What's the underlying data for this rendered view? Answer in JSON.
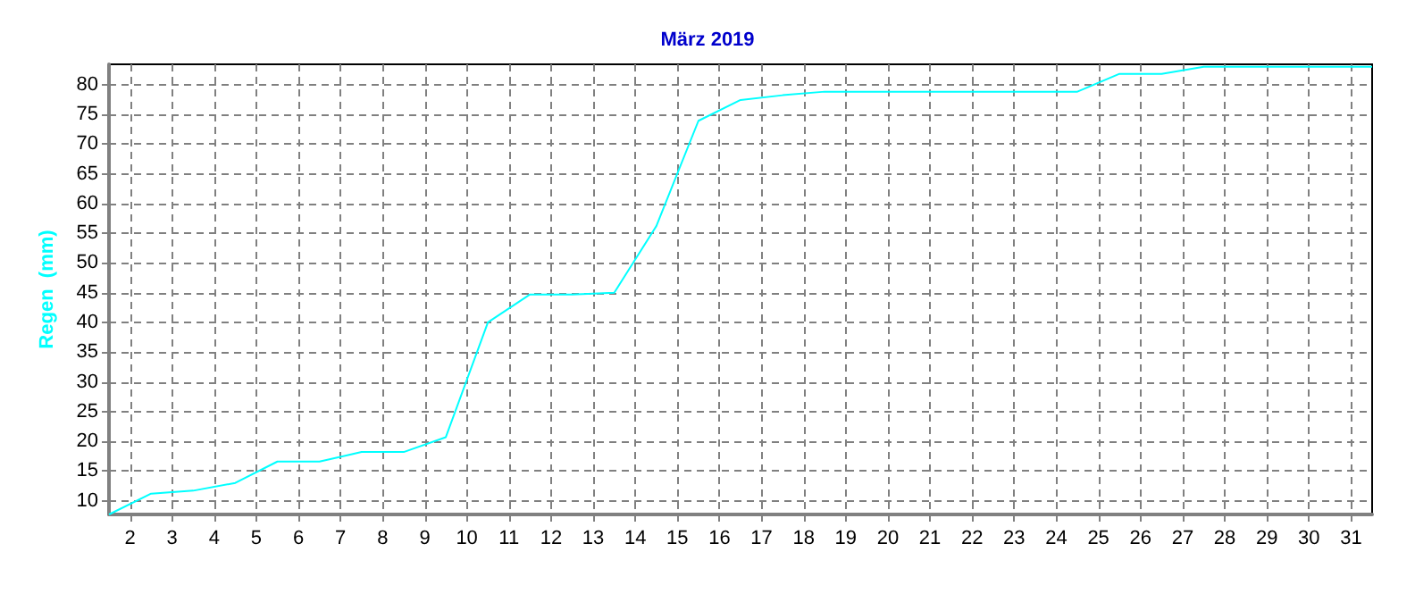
{
  "chart_data": {
    "type": "line",
    "title": "März 2019",
    "ylabel": "Regen  (mm)",
    "x": [
      1.5,
      2.5,
      3.5,
      4.5,
      5.5,
      6.5,
      7.5,
      8.5,
      9.5,
      10.5,
      11.5,
      12.5,
      13.5,
      14.5,
      15.5,
      16.5,
      17.5,
      18.5,
      19.5,
      20.5,
      21.5,
      22.5,
      23.5,
      24.5,
      25.5,
      26.5,
      27.5,
      28.5,
      29.5,
      30.5,
      31.5
    ],
    "series": [
      {
        "color": "#00ffff",
        "values": [
          7.7,
          11.2,
          11.7,
          13.0,
          16.6,
          16.6,
          18.2,
          18.2,
          20.7,
          40.0,
          44.7,
          44.7,
          45.0,
          56.2,
          73.9,
          77.4,
          78.2,
          78.8,
          78.8,
          78.8,
          78.8,
          78.8,
          78.8,
          78.8,
          81.8,
          81.8,
          83.0,
          83.0,
          83.0,
          83.0,
          83.0
        ]
      }
    ],
    "xlim": [
      1.5,
      31.5
    ],
    "xticks": [
      2,
      3,
      4,
      5,
      6,
      7,
      8,
      9,
      10,
      11,
      12,
      13,
      14,
      15,
      16,
      17,
      18,
      19,
      20,
      21,
      22,
      23,
      24,
      25,
      26,
      27,
      28,
      29,
      30,
      31
    ],
    "ylim": [
      7.7,
      83.4
    ],
    "yticks": [
      10,
      15,
      20,
      25,
      30,
      35,
      40,
      45,
      50,
      55,
      60,
      65,
      70,
      75,
      80
    ],
    "grid": true,
    "marker": "none",
    "line_style": "solid"
  }
}
